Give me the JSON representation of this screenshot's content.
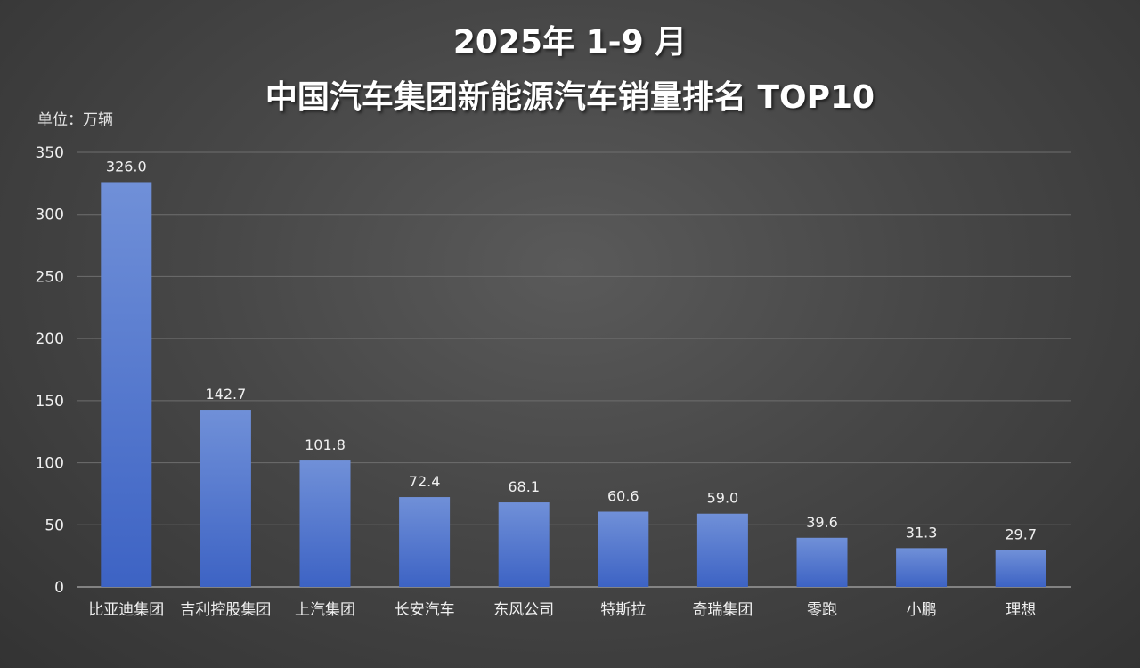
{
  "title": {
    "line1": "2025年 1-9 月",
    "line2": "中国汽车集团新能源汽车销量排名  TOP10"
  },
  "unit_label": "单位：万辆",
  "colors": {
    "bar_top": "#7090d8",
    "bar_bottom": "#3d63c4",
    "grid": "#6e6e6e",
    "text": "#f0f0f0"
  },
  "chart_data": {
    "type": "bar",
    "categories": [
      "比亚迪集团",
      "吉利控股集团",
      "上汽集团",
      "长安汽车",
      "东风公司",
      "特斯拉",
      "奇瑞集团",
      "零跑",
      "小鹏",
      "理想"
    ],
    "values": [
      326.0,
      142.7,
      101.8,
      72.4,
      68.1,
      60.6,
      59.0,
      39.6,
      31.3,
      29.7
    ],
    "data_labels": [
      "326.0",
      "142.7",
      "101.8",
      "72.4",
      "68.1",
      "60.6",
      "59.0",
      "39.6",
      "31.3",
      "29.7"
    ],
    "ylim": [
      0,
      350
    ],
    "yticks": [
      0,
      50,
      100,
      150,
      200,
      250,
      300,
      350
    ],
    "grid": true,
    "legend": "none"
  }
}
